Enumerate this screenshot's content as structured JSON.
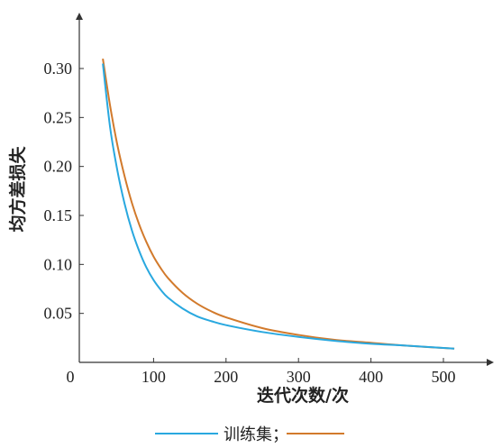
{
  "chart_data": {
    "type": "line",
    "xlabel": "迭代次数/次",
    "ylabel": "均方差损失",
    "xlim": [
      0,
      540
    ],
    "ylim": [
      0,
      0.34
    ],
    "x_ticks": [
      0,
      100,
      200,
      300,
      400,
      500
    ],
    "y_ticks": [
      0.05,
      0.1,
      0.15,
      0.2,
      0.25,
      0.3
    ],
    "x_tick_labels": [
      "0",
      "100",
      "200",
      "300",
      "400",
      "500"
    ],
    "y_tick_labels": [
      "0.05",
      "0.10",
      "0.15",
      "0.20",
      "0.25",
      "0.30"
    ],
    "grid": false,
    "legend_position": "bottom",
    "series": [
      {
        "name": "训练集；",
        "color": "#29a8df",
        "x": [
          30,
          40,
          50,
          60,
          70,
          80,
          90,
          100,
          110,
          120,
          140,
          160,
          180,
          200,
          250,
          300,
          350,
          400,
          450,
          515
        ],
        "y": [
          0.305,
          0.24,
          0.196,
          0.162,
          0.135,
          0.114,
          0.097,
          0.084,
          0.074,
          0.066,
          0.055,
          0.047,
          0.042,
          0.038,
          0.031,
          0.026,
          0.022,
          0.019,
          0.017,
          0.014
        ]
      },
      {
        "name": "",
        "color": "#d27a2c",
        "x": [
          30,
          40,
          50,
          60,
          70,
          80,
          90,
          100,
          110,
          120,
          140,
          160,
          180,
          200,
          250,
          300,
          350,
          400,
          450,
          515
        ],
        "y": [
          0.31,
          0.262,
          0.222,
          0.19,
          0.163,
          0.141,
          0.123,
          0.108,
          0.096,
          0.086,
          0.071,
          0.06,
          0.052,
          0.046,
          0.035,
          0.028,
          0.023,
          0.02,
          0.017,
          0.014
        ]
      }
    ]
  }
}
